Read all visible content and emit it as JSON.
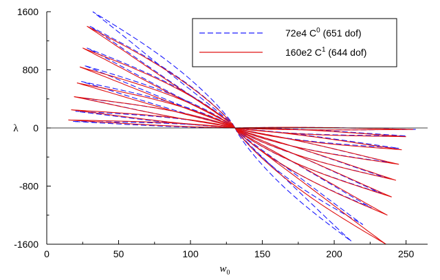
{
  "chart_data": {
    "type": "line",
    "title": "",
    "xlabel": "w",
    "xlabel_sub": "0",
    "ylabel": "λ",
    "xlim": [
      0,
      265
    ],
    "ylim": [
      -1600,
      1600
    ],
    "xticks": [
      0,
      50,
      100,
      150,
      200,
      250
    ],
    "yticks": [
      -1600,
      -800,
      0,
      800,
      1600
    ],
    "grid": false,
    "legend_position": "top-right",
    "center": [
      131,
      0
    ],
    "series": [
      {
        "name": "72e4 C0 (651 dof)",
        "legend_base": "72e4 C",
        "legend_sup": "0",
        "legend_rest": " (651 dof)",
        "style": "dashed",
        "color": "#1a1aff",
        "loops": [
          {
            "tip": [
              18,
              90
            ],
            "thick": 25
          },
          {
            "tip": [
              20,
              230
            ],
            "thick": 40
          },
          {
            "tip": [
              22,
              420
            ],
            "thick": 50
          },
          {
            "tip": [
              24,
              640
            ],
            "thick": 55
          },
          {
            "tip": [
              26,
              860
            ],
            "thick": 60
          },
          {
            "tip": [
              28,
              1100
            ],
            "thick": 70
          },
          {
            "tip": [
              30,
              1400
            ],
            "thick": 80
          },
          {
            "tip": [
              32,
              1600
            ],
            "thick": 90
          },
          {
            "tip": [
              257,
              -20
            ],
            "thick": 20
          },
          {
            "tip": [
              250,
              -110
            ],
            "thick": 35
          },
          {
            "tip": [
              245,
              -280
            ],
            "thick": 45
          },
          {
            "tip": [
              240,
              -480
            ],
            "thick": 55
          },
          {
            "tip": [
              237,
              -690
            ],
            "thick": 60
          },
          {
            "tip": [
              233,
              -900
            ],
            "thick": 70
          },
          {
            "tip": [
              226,
              -1100
            ],
            "thick": 75
          },
          {
            "tip": [
              220,
              -1330
            ],
            "thick": 80
          },
          {
            "tip": [
              212,
              -1560
            ],
            "thick": 80
          }
        ]
      },
      {
        "name": "160e2 C1 (644 dof)",
        "legend_base": "160e2 C",
        "legend_sup": "1",
        "legend_rest": " (644 dof)",
        "style": "solid",
        "color": "#e01010",
        "loops": [
          {
            "tip": [
              15,
              110
            ],
            "thick": 25
          },
          {
            "tip": [
              17,
              250
            ],
            "thick": 40
          },
          {
            "tip": [
              19,
              430
            ],
            "thick": 50
          },
          {
            "tip": [
              21,
              620
            ],
            "thick": 55
          },
          {
            "tip": [
              23,
              840
            ],
            "thick": 60
          },
          {
            "tip": [
              25,
              1100
            ],
            "thick": 70
          },
          {
            "tip": [
              28,
              1400
            ],
            "thick": 80
          },
          {
            "tip": [
              255,
              -20
            ],
            "thick": 20
          },
          {
            "tip": [
              250,
              -120
            ],
            "thick": 35
          },
          {
            "tip": [
              247,
              -300
            ],
            "thick": 45
          },
          {
            "tip": [
              245,
              -500
            ],
            "thick": 55
          },
          {
            "tip": [
              243,
              -720
            ],
            "thick": 60
          },
          {
            "tip": [
              240,
              -950
            ],
            "thick": 70
          },
          {
            "tip": [
              237,
              -1200
            ],
            "thick": 75
          },
          {
            "tip": [
              236,
              -1600
            ],
            "thick": 80
          }
        ]
      }
    ]
  }
}
